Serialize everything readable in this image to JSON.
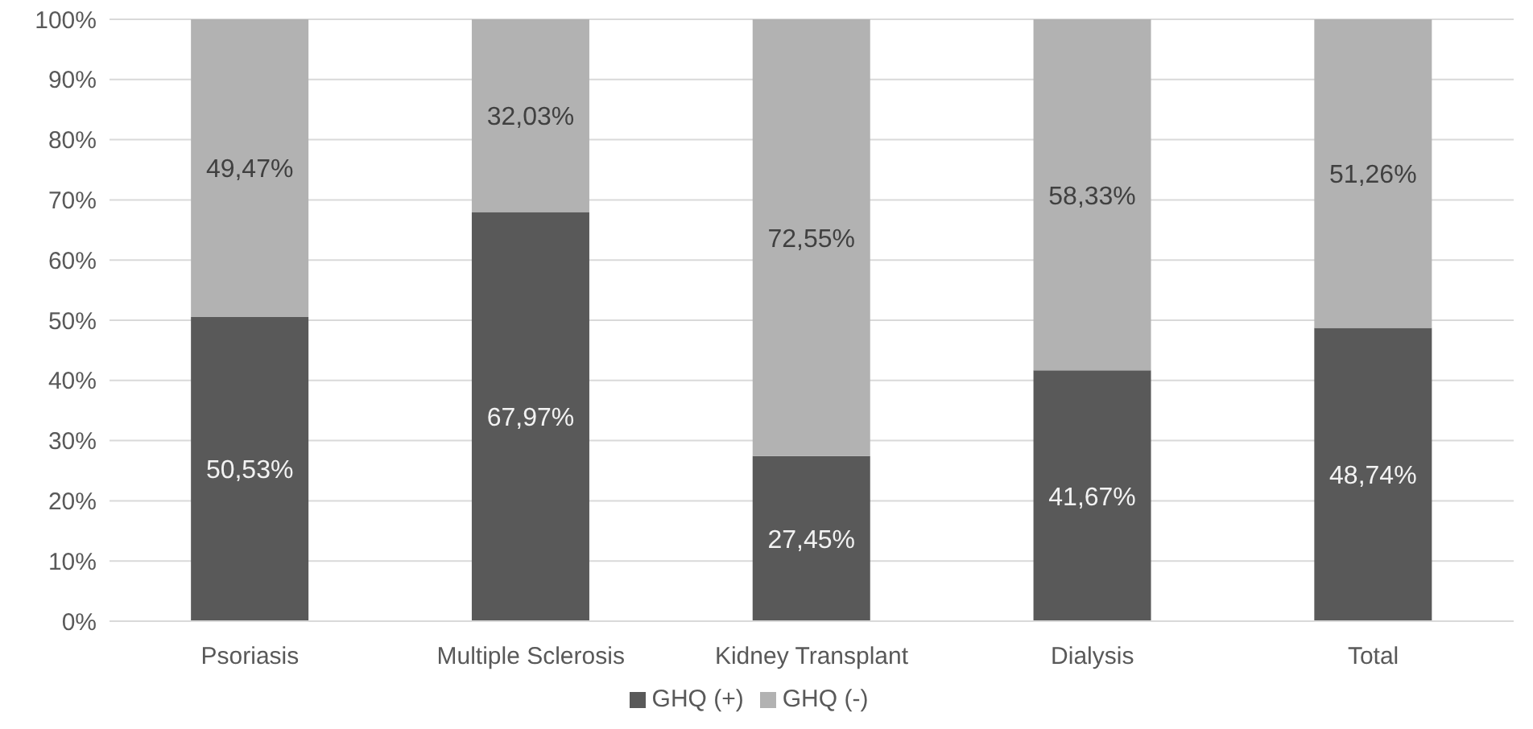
{
  "chart_data": {
    "type": "bar",
    "stacked": true,
    "categories": [
      "Psoriasis",
      "Multiple Sclerosis",
      "Kidney Transplant",
      "Dialysis",
      "Total"
    ],
    "series": [
      {
        "name": "GHQ (+)",
        "color": "#595959",
        "values": [
          50.53,
          67.97,
          27.45,
          41.67,
          48.74
        ],
        "value_labels": [
          "50,53%",
          "67,97%",
          "27,45%",
          "41,67%",
          "48,74%"
        ]
      },
      {
        "name": "GHQ (-)",
        "color": "#b2b2b2",
        "values": [
          49.47,
          32.03,
          72.55,
          58.33,
          51.26
        ],
        "value_labels": [
          "49,47%",
          "32,03%",
          "72,55%",
          "58,33%",
          "51,26%"
        ]
      }
    ],
    "ylim": [
      0,
      100
    ],
    "yticks": [
      {
        "value": 0,
        "label": "0%"
      },
      {
        "value": 10,
        "label": "10%"
      },
      {
        "value": 20,
        "label": "20%"
      },
      {
        "value": 30,
        "label": "30%"
      },
      {
        "value": 40,
        "label": "40%"
      },
      {
        "value": 50,
        "label": "50%"
      },
      {
        "value": 60,
        "label": "60%"
      },
      {
        "value": 70,
        "label": "70%"
      },
      {
        "value": 80,
        "label": "80%"
      },
      {
        "value": 90,
        "label": "90%"
      },
      {
        "value": 100,
        "label": "100%"
      }
    ],
    "grid": "y",
    "legend": "bottom"
  }
}
